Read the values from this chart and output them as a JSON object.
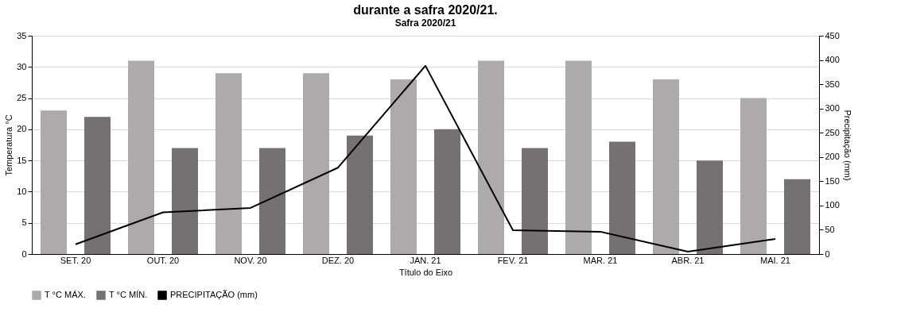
{
  "chart_data": {
    "type": "bar",
    "title": "durante a safra 2020/21.",
    "subtitle": "Safra 2020/21",
    "xlabel": "Título do Eixo",
    "ylabel": "Temperatura °C",
    "y2label": "Precipitação (mm)",
    "categories": [
      "SET. 20",
      "OUT. 20",
      "NOV. 20",
      "DEZ. 20",
      "JAN. 21",
      "FEV. 21",
      "MAR. 21",
      "ABR. 21",
      "MAI. 21"
    ],
    "series": [
      {
        "name": "T °C MÁX.",
        "color": "#aeaaaa",
        "values": [
          23,
          31,
          29,
          29,
          28,
          31,
          31,
          28,
          25
        ]
      },
      {
        "name": "T °C MÍN.",
        "color": "#757171",
        "values": [
          22,
          17,
          17,
          19,
          20,
          17,
          18,
          15,
          12
        ]
      },
      {
        "name": "PRECIPITAÇÃO (mm)",
        "type": "line",
        "axis": "y2",
        "color": "#000000",
        "values": [
          20,
          86,
          95,
          178,
          388,
          49,
          46,
          5,
          31
        ]
      }
    ],
    "ylim": [
      0,
      35
    ],
    "yticks": [
      0,
      5,
      10,
      15,
      20,
      25,
      30,
      35
    ],
    "y2lim": [
      0,
      450
    ],
    "y2ticks": [
      0,
      50,
      100,
      150,
      200,
      250,
      300,
      350,
      400,
      450
    ],
    "grid": "y",
    "legend": "bottom"
  }
}
